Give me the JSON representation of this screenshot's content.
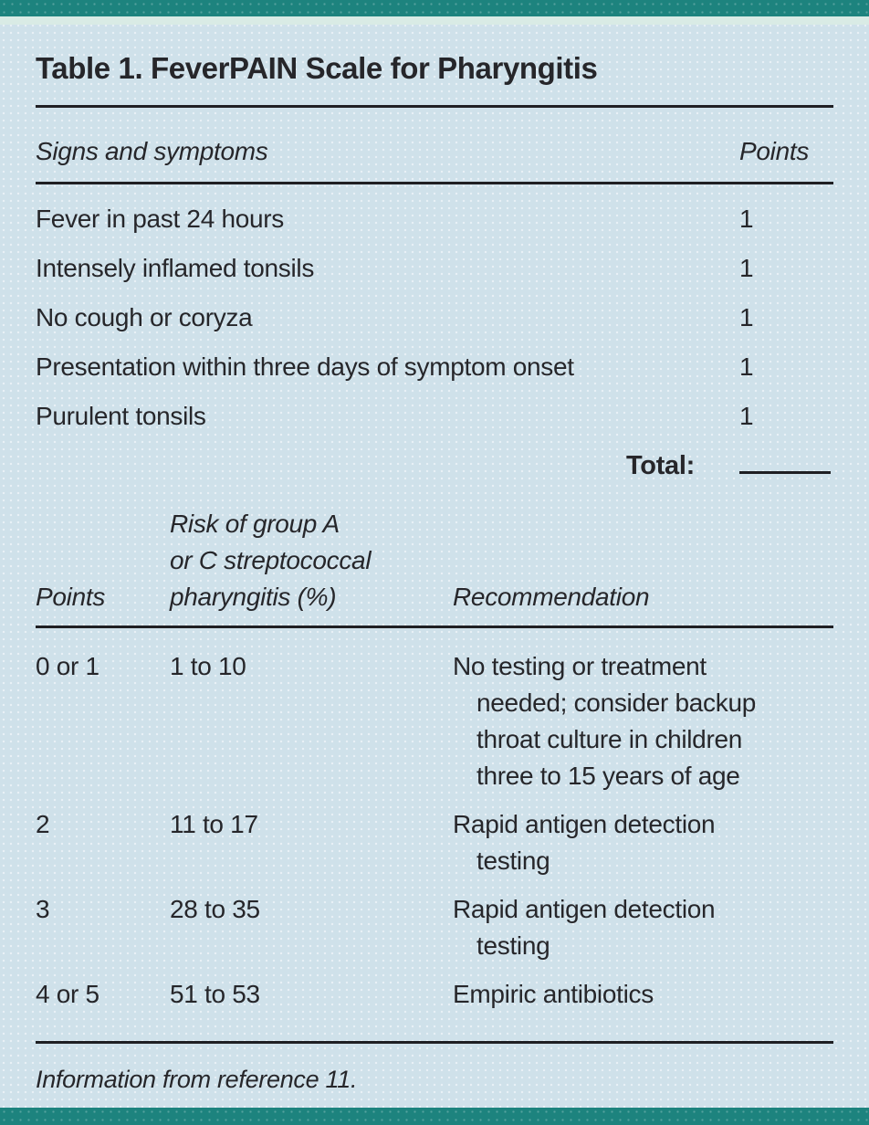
{
  "theme": {
    "teal": "#1d837e",
    "mint": "#d9ebe5",
    "blue_bg": "#cfe1ea",
    "ink": "#26262a"
  },
  "title": "Table 1. FeverPAIN Scale for Pharyngitis",
  "scale_table": {
    "header": {
      "signs": "Signs and symptoms",
      "points": "Points"
    },
    "rows": [
      {
        "sign": "Fever in past 24 hours",
        "points": "1"
      },
      {
        "sign": "Intensely inflamed tonsils",
        "points": "1"
      },
      {
        "sign": "No cough or coryza",
        "points": "1"
      },
      {
        "sign": "Presentation within three days of symptom onset",
        "points": "1"
      },
      {
        "sign": "Purulent tonsils",
        "points": "1"
      }
    ],
    "total_label": "Total:",
    "total_value": ""
  },
  "risk_table": {
    "header": {
      "points": "Points",
      "risk": "Risk of group A\nor C streptococcal\npharyngitis (%)",
      "recommendation": "Recommendation"
    },
    "rows": [
      {
        "points": "0 or 1",
        "risk": "1 to 10",
        "recommendation": "No testing or treatment\nneeded; consider backup\nthroat culture in children\nthree to 15 years of age"
      },
      {
        "points": "2",
        "risk": "11 to 17",
        "recommendation": "Rapid antigen detection\ntesting"
      },
      {
        "points": "3",
        "risk": "28 to 35",
        "recommendation": "Rapid antigen detection\ntesting"
      },
      {
        "points": "4 or 5",
        "risk": "51 to 53",
        "recommendation": "Empiric antibiotics"
      }
    ]
  },
  "footnote": "Information from reference 11."
}
